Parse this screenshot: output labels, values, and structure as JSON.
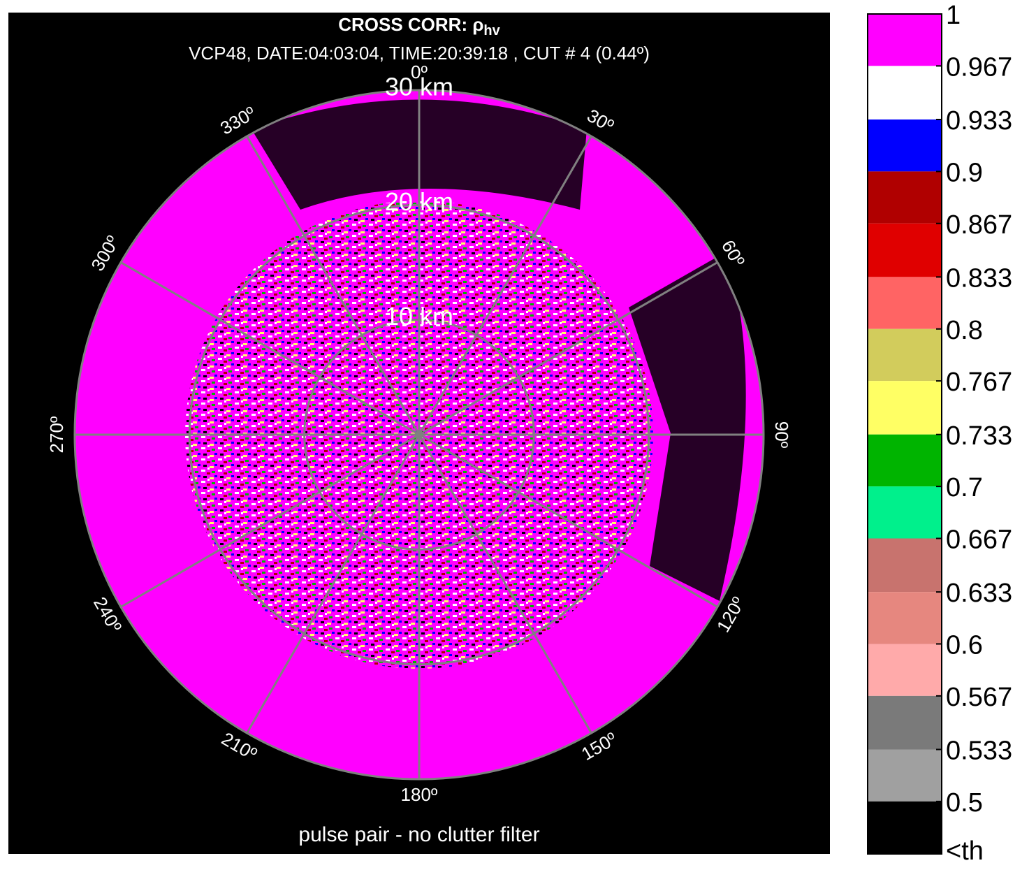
{
  "chart_data": {
    "type": "ppi",
    "title": "CROSS CORR: ρ",
    "title_subscript": "hv",
    "subtitle": "VCP48, DATE:04:03:04, TIME:20:39:18 , CUT # 4 (0.44º)",
    "xlabel": "pulse pair - no clutter filter",
    "rlim": [
      0,
      30
    ],
    "range_rings": [
      {
        "value": 10,
        "label": "10 km"
      },
      {
        "value": 20,
        "label": "20 km"
      },
      {
        "value": 30,
        "label": "30 km"
      }
    ],
    "azimuth_ticks": [
      {
        "value": 0,
        "label": "0º"
      },
      {
        "value": 30,
        "label": "30º"
      },
      {
        "value": 60,
        "label": "60º"
      },
      {
        "value": 90,
        "label": "90º"
      },
      {
        "value": 120,
        "label": "120º"
      },
      {
        "value": 150,
        "label": "150º"
      },
      {
        "value": 180,
        "label": "180º"
      },
      {
        "value": 210,
        "label": "210º"
      },
      {
        "value": 240,
        "label": "240º"
      },
      {
        "value": 270,
        "label": "270º"
      },
      {
        "value": 300,
        "label": "300º"
      },
      {
        "value": 330,
        "label": "330º"
      }
    ],
    "colorbar": {
      "clim": [
        0.5,
        1
      ],
      "ticks": [
        1,
        0.967,
        0.933,
        0.9,
        0.867,
        0.833,
        0.8,
        0.767,
        0.733,
        0.7,
        0.667,
        0.633,
        0.6,
        0.567,
        0.533,
        0.5
      ],
      "under_label": "<th",
      "colors": [
        "#ff00ff",
        "#ffffff",
        "#0000ff",
        "#b00000",
        "#e00000",
        "#ff6464",
        "#d2cc5c",
        "#ffff64",
        "#00b400",
        "#00f08c",
        "#c8736e",
        "#e6877f",
        "#ffaaaa",
        "#7a7a7a",
        "#a0a0a0",
        "#000000"
      ]
    }
  }
}
